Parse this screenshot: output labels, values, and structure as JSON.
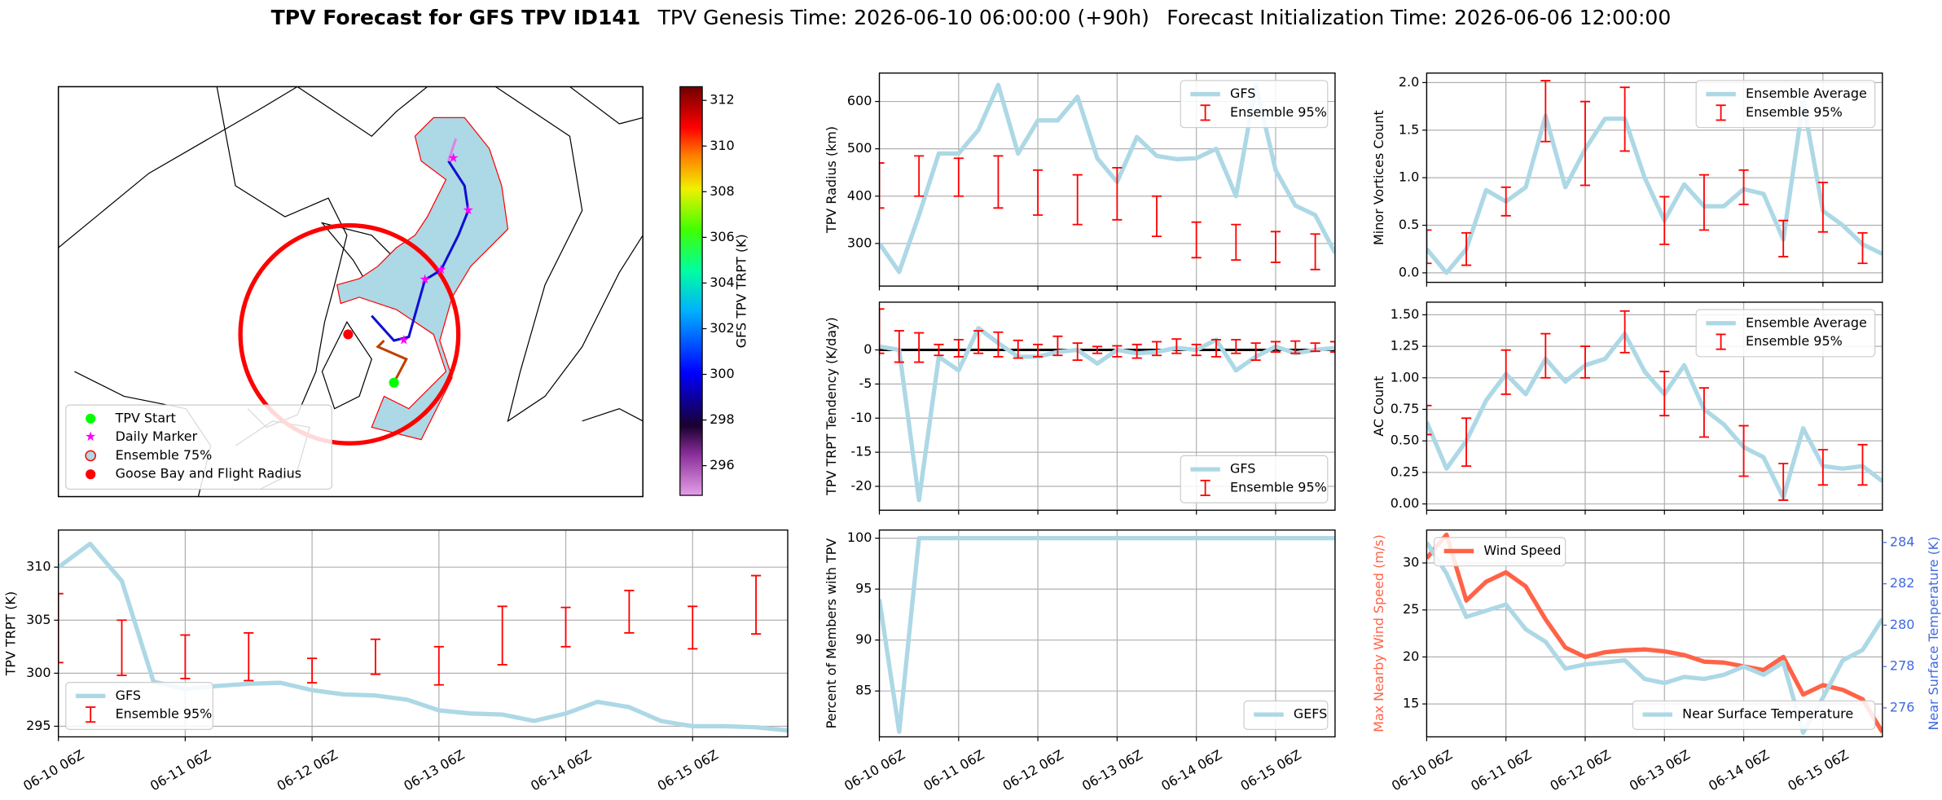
{
  "title": {
    "main": "TPV Forecast for GFS TPV ID141",
    "genesis": "TPV Genesis Time: 2026-06-10 06:00:00 (+90h)",
    "init": "Forecast Initialization Time: 2026-06-06 12:00:00"
  },
  "chart_data": [
    {
      "type": "map",
      "legend_loc": "lower left",
      "legend": [
        {
          "label": "TPV Start",
          "marker": "circle",
          "color": "#00ff00"
        },
        {
          "label": "Daily Marker",
          "marker": "star",
          "color": "#ff00ff"
        },
        {
          "label": "Ensemble 75%",
          "marker": "ring",
          "color": "#ff0000"
        },
        {
          "label": "Goose Bay and Flight Radius",
          "marker": "circle",
          "color": "#ff0000"
        }
      ],
      "colorbar": {
        "label": "GFS TPV TRPT (K)",
        "lim": [
          294.7,
          312.6
        ],
        "ticks": [
          296,
          298,
          300,
          302,
          304,
          306,
          308,
          310,
          312
        ]
      }
    },
    {
      "type": "line",
      "ylabel": "TPV Radius (km)",
      "grid": true,
      "legend_loc": "upper right",
      "categories": [
        null,
        null,
        null,
        null,
        null,
        null,
        null,
        null,
        null,
        null,
        null,
        null,
        null,
        null,
        null,
        null,
        null,
        null,
        null,
        null,
        null,
        null,
        null,
        null
      ],
      "xticks": [
        0,
        4,
        8,
        12,
        16,
        20
      ],
      "ylim": [
        210,
        660
      ],
      "yticks": [
        300,
        400,
        500,
        600
      ],
      "series": [
        {
          "name": "GFS",
          "color": "#add8e6",
          "values": [
            300,
            240,
            360,
            490,
            490,
            540,
            635,
            490,
            560,
            560,
            610,
            480,
            430,
            525,
            485,
            478,
            480,
            500,
            400,
            635,
            455,
            380,
            360,
            280
          ]
        },
        {
          "name": "Ensemble 95%",
          "color": "#ff0000",
          "low": [
            375,
            null,
            400,
            null,
            400,
            null,
            375,
            null,
            360,
            null,
            340,
            null,
            350,
            null,
            315,
            null,
            270,
            null,
            265,
            null,
            260,
            null,
            245,
            null
          ],
          "high": [
            470,
            null,
            485,
            null,
            480,
            null,
            485,
            null,
            455,
            null,
            445,
            null,
            460,
            null,
            400,
            null,
            345,
            null,
            340,
            null,
            325,
            null,
            320,
            null
          ]
        }
      ]
    },
    {
      "type": "line",
      "ylabel": "Minor Vortices Count",
      "grid": true,
      "legend_loc": "upper right",
      "categories": [
        null,
        null,
        null,
        null,
        null,
        null,
        null,
        null,
        null,
        null,
        null,
        null,
        null,
        null,
        null,
        null,
        null,
        null,
        null,
        null,
        null,
        null,
        null,
        null
      ],
      "xticks": [
        0,
        4,
        8,
        12,
        16,
        20
      ],
      "ylim": [
        -0.1,
        2.1
      ],
      "yticks": [
        {
          "value": 0,
          "label": "0.0"
        },
        0.5,
        {
          "value": 1,
          "label": "1.0"
        },
        1.5,
        {
          "value": 2,
          "label": "2.0"
        }
      ],
      "series": [
        {
          "name": "Ensemble Average",
          "color": "#add8e6",
          "values": [
            0.25,
            0,
            0.25,
            0.87,
            0.75,
            0.9,
            1.65,
            0.9,
            1.3,
            1.62,
            1.62,
            1.0,
            0.55,
            0.93,
            0.7,
            0.7,
            0.88,
            0.83,
            0.35,
            1.8,
            0.65,
            0.5,
            0.3,
            0.2
          ]
        },
        {
          "name": "Ensemble 95%",
          "color": "#ff0000",
          "low": [
            0.1,
            null,
            0.08,
            null,
            0.6,
            null,
            1.38,
            null,
            0.92,
            null,
            1.28,
            null,
            0.3,
            null,
            0.45,
            null,
            0.72,
            null,
            0.17,
            null,
            0.43,
            null,
            0.1,
            null
          ],
          "high": [
            0.45,
            null,
            0.42,
            null,
            0.9,
            null,
            2.02,
            null,
            1.8,
            null,
            1.95,
            null,
            0.8,
            null,
            1.03,
            null,
            1.08,
            null,
            0.55,
            null,
            0.95,
            null,
            0.42,
            null
          ]
        }
      ]
    },
    {
      "type": "line",
      "ylabel": "TPV TRPT Tendency (K/day)",
      "grid": true,
      "legend_loc": "lower right",
      "hline": 0,
      "categories": [
        null,
        null,
        null,
        null,
        null,
        null,
        null,
        null,
        null,
        null,
        null,
        null,
        null,
        null,
        null,
        null,
        null,
        null,
        null,
        null,
        null,
        null,
        null,
        null
      ],
      "xticks": [
        0,
        4,
        8,
        12,
        16,
        20
      ],
      "ylim": [
        -23.5,
        7
      ],
      "yticks": [
        -20,
        -15,
        -10,
        -5,
        0
      ],
      "series": [
        {
          "name": "GFS",
          "color": "#add8e6",
          "values": [
            0.5,
            0,
            -22,
            -1,
            -3,
            3.2,
            1,
            -1,
            -1,
            -0.3,
            0,
            -2,
            0,
            -0.5,
            -0.3,
            0.3,
            0,
            1.5,
            -3,
            -1,
            0.5,
            -0.5,
            0,
            0.3
          ]
        },
        {
          "name": "Ensemble 95%",
          "color": "#ff0000",
          "low": [
            -0.5,
            -1.8,
            -1.8,
            -0.8,
            -1,
            -0.5,
            -1,
            -1.2,
            -1,
            -0.8,
            -1.5,
            -0.5,
            -1,
            -1.2,
            -0.8,
            -0.5,
            -0.8,
            -1,
            -0.5,
            -1.5,
            -0.3,
            -0.5,
            -0.2,
            -0.3
          ],
          "high": [
            6,
            2.8,
            2.5,
            0.8,
            1.5,
            2.8,
            2.6,
            1.4,
            0.8,
            2,
            1,
            0.5,
            0.6,
            0.8,
            1.2,
            1.6,
            0.8,
            1.5,
            1.5,
            1,
            1.2,
            1.3,
            1,
            1.2
          ]
        }
      ]
    },
    {
      "type": "line",
      "ylabel": "AC Count",
      "grid": true,
      "legend_loc": "upper right",
      "categories": [
        null,
        null,
        null,
        null,
        null,
        null,
        null,
        null,
        null,
        null,
        null,
        null,
        null,
        null,
        null,
        null,
        null,
        null,
        null,
        null,
        null,
        null,
        null,
        null
      ],
      "xticks": [
        0,
        4,
        8,
        12,
        16,
        20
      ],
      "ylim": [
        -0.05,
        1.6
      ],
      "yticks": [
        {
          "value": 0,
          "label": "0.00"
        },
        {
          "value": 0.25,
          "label": "0.25"
        },
        {
          "value": 0.5,
          "label": "0.50"
        },
        {
          "value": 0.75,
          "label": "0.75"
        },
        {
          "value": 1,
          "label": "1.00"
        },
        {
          "value": 1.25,
          "label": "1.25"
        },
        {
          "value": 1.5,
          "label": "1.50"
        }
      ],
      "series": [
        {
          "name": "Ensemble Average",
          "color": "#add8e6",
          "values": [
            0.65,
            0.28,
            0.5,
            0.82,
            1.03,
            0.87,
            1.15,
            0.97,
            1.1,
            1.15,
            1.35,
            1.05,
            0.87,
            1.1,
            0.75,
            0.63,
            0.45,
            0.37,
            0.05,
            0.6,
            0.3,
            0.28,
            0.3,
            0.18
          ]
        },
        {
          "name": "Ensemble 95%",
          "color": "#ff0000",
          "low": [
            0.55,
            null,
            0.3,
            null,
            0.87,
            null,
            1.0,
            null,
            1.0,
            null,
            1.2,
            null,
            0.7,
            null,
            0.53,
            null,
            0.22,
            null,
            0.03,
            null,
            0.15,
            null,
            0.15,
            null
          ],
          "high": [
            0.78,
            null,
            0.68,
            null,
            1.22,
            null,
            1.35,
            null,
            1.25,
            null,
            1.53,
            null,
            1.05,
            null,
            0.92,
            null,
            0.62,
            null,
            0.32,
            null,
            0.43,
            null,
            0.47,
            null
          ]
        }
      ]
    },
    {
      "type": "line",
      "ylabel": "TPV TRPT (K)",
      "grid": true,
      "legend_loc": "lower left",
      "categories": [
        "06-10 06Z",
        null,
        null,
        null,
        "06-11 06Z",
        null,
        null,
        null,
        "06-12 06Z",
        null,
        null,
        null,
        "06-13 06Z",
        null,
        null,
        null,
        "06-14 06Z",
        null,
        null,
        null,
        "06-15 06Z",
        null,
        null,
        null
      ],
      "xticks": [
        0,
        4,
        8,
        12,
        16,
        20
      ],
      "ylim": [
        294,
        313.5
      ],
      "yticks": [
        295,
        300,
        305,
        310
      ],
      "series": [
        {
          "name": "GFS",
          "color": "#add8e6",
          "values": [
            310,
            312.2,
            308.7,
            299.2,
            298.5,
            298.8,
            299,
            299.1,
            298.4,
            298,
            297.9,
            297.5,
            296.5,
            296.2,
            296.1,
            295.5,
            296.2,
            297.3,
            296.8,
            295.5,
            295,
            295,
            294.9,
            294.6
          ]
        },
        {
          "name": "Ensemble 95%",
          "color": "#ff0000",
          "low": [
            301,
            null,
            299.8,
            null,
            299.5,
            null,
            299.3,
            null,
            299.1,
            null,
            299.9,
            null,
            298.9,
            null,
            300.8,
            null,
            302.5,
            null,
            303.8,
            null,
            302.3,
            null,
            303.7,
            null
          ],
          "high": [
            307.5,
            null,
            305,
            null,
            303.6,
            null,
            303.8,
            null,
            301.4,
            null,
            303.2,
            null,
            302.5,
            null,
            306.3,
            null,
            306.2,
            null,
            307.8,
            null,
            306.3,
            null,
            309.2,
            null
          ]
        }
      ]
    },
    {
      "type": "line",
      "ylabel": "Percent of Members with TPV",
      "grid": true,
      "legend_loc": "lower right",
      "categories": [
        "06-10 06Z",
        null,
        null,
        null,
        "06-11 06Z",
        null,
        null,
        null,
        "06-12 06Z",
        null,
        null,
        null,
        "06-13 06Z",
        null,
        null,
        null,
        "06-14 06Z",
        null,
        null,
        null,
        "06-15 06Z",
        null,
        null,
        null
      ],
      "xticks": [
        0,
        4,
        8,
        12,
        16,
        20
      ],
      "ylim": [
        80.5,
        100.8
      ],
      "yticks": [
        85,
        90,
        95,
        100
      ],
      "series": [
        {
          "name": "GEFS",
          "color": "#add8e6",
          "values": [
            94,
            81,
            100,
            100,
            100,
            100,
            100,
            100,
            100,
            100,
            100,
            100,
            100,
            100,
            100,
            100,
            100,
            100,
            100,
            100,
            100,
            100,
            100,
            100
          ]
        }
      ]
    },
    {
      "type": "line",
      "ylabel": "Max Nearby Wind Speed (m/s)",
      "ylabel_color": "#ff6347",
      "y2label": "Near Surface Temperature (K)",
      "y2_color": "#4169e1",
      "grid": true,
      "legend_loc": "upper left",
      "legend_loc_y2": "lower right",
      "categories": [
        "06-10 06Z",
        null,
        null,
        null,
        "06-11 06Z",
        null,
        null,
        null,
        "06-12 06Z",
        null,
        null,
        null,
        "06-13 06Z",
        null,
        null,
        null,
        "06-14 06Z",
        null,
        null,
        null,
        "06-15 06Z",
        null,
        null,
        null
      ],
      "xticks": [
        0,
        4,
        8,
        12,
        16,
        20
      ],
      "ylim": [
        11.5,
        33.5
      ],
      "yticks": [
        15,
        20,
        25,
        30
      ],
      "y2lim": [
        274.6,
        284.6
      ],
      "y2ticks": [
        276,
        278,
        280,
        282,
        284
      ],
      "series": [
        {
          "name": "Wind Speed",
          "color": "#ff6347",
          "values": [
            30.5,
            33,
            26,
            28,
            29,
            27.5,
            24,
            21,
            20,
            20.5,
            20.7,
            20.8,
            20.6,
            20.2,
            19.5,
            19.4,
            19,
            18.6,
            20,
            16,
            17,
            16.5,
            15.5,
            12
          ]
        },
        {
          "name": "Near Surface Temperature",
          "color": "#add8e6",
          "axis": "y2",
          "values": [
            284,
            282.5,
            280.4,
            280.7,
            281,
            279.8,
            279.2,
            277.9,
            278.1,
            278.2,
            278.3,
            277.4,
            277.2,
            277.5,
            277.4,
            277.6,
            278,
            277.6,
            278.2,
            274.8,
            276.5,
            278.3,
            278.8,
            280.3
          ]
        }
      ]
    }
  ]
}
